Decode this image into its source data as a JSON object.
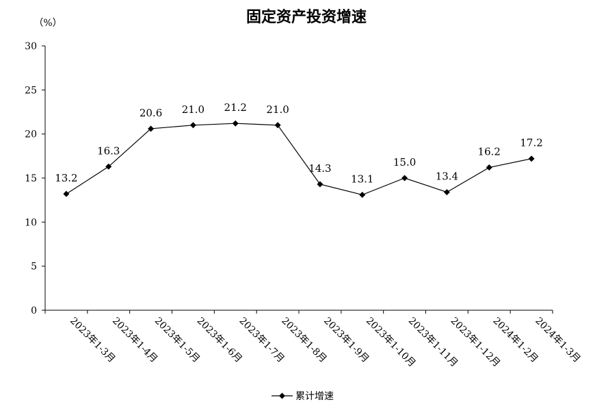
{
  "chart_data": {
    "type": "line",
    "title": "固定资产投资增速",
    "unit_label": "（%）",
    "categories": [
      "2023年1-3月",
      "2023年1-4月",
      "2023年1-5月",
      "2023年1-6月",
      "2023年1-7月",
      "2023年1-8月",
      "2023年1-9月",
      "2023年1-10月",
      "2023年1-11月",
      "2023年1-12月",
      "2024年1-2月",
      "2024年1-3月"
    ],
    "series": [
      {
        "name": "累计增速",
        "values": [
          13.2,
          16.3,
          20.6,
          21.0,
          21.2,
          21.0,
          14.3,
          13.1,
          15.0,
          13.4,
          16.2,
          17.2
        ],
        "labels": [
          "13.2",
          "16.3",
          "20.6",
          "21.0",
          "21.2",
          "21.0",
          "14.3",
          "13.1",
          "15.0",
          "13.4",
          "16.2",
          "17.2"
        ],
        "color": "#000000",
        "marker": "diamond"
      }
    ],
    "ylim": [
      0,
      30
    ],
    "yticks": [
      0,
      5,
      10,
      15,
      20,
      25,
      30
    ],
    "grid": false,
    "legend_position": "bottom-center"
  }
}
